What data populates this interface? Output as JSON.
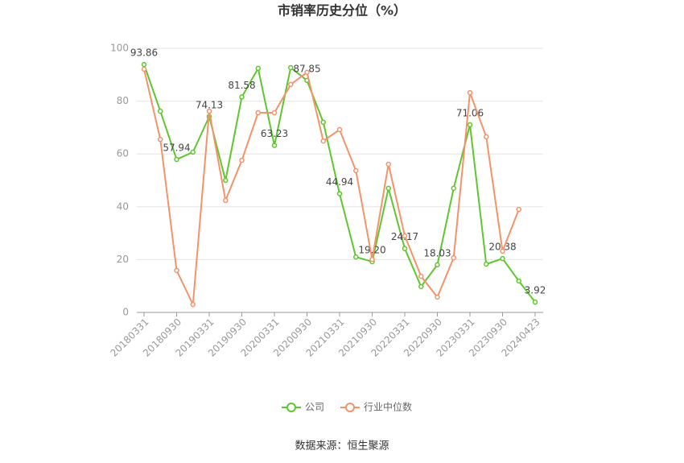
{
  "chart_data": {
    "type": "line",
    "title": "市销率历史分位（%）",
    "source": "数据来源：恒生聚源",
    "categories": [
      "20180331",
      null,
      "20180930",
      null,
      "20190331",
      null,
      "20190930",
      null,
      "20200331",
      null,
      "20200930",
      null,
      "20210331",
      null,
      "20210930",
      null,
      "20220331",
      null,
      "20220930",
      null,
      "20230331",
      null,
      "20230930",
      null,
      "20240423"
    ],
    "series": [
      {
        "name": "公司",
        "color": "#5fc62f",
        "values": [
          93.86,
          76.2,
          57.94,
          60.7,
          74.13,
          50.0,
          81.58,
          92.4,
          63.23,
          92.7,
          87.85,
          72.0,
          44.94,
          21.0,
          19.2,
          47.0,
          24.17,
          9.8,
          18.03,
          47.0,
          71.06,
          18.3,
          20.38,
          11.9,
          3.92
        ],
        "value_labels": [
          "93.86",
          null,
          "57.94",
          null,
          "74.13",
          null,
          "81.58",
          null,
          "63.23",
          null,
          "87.85",
          null,
          "44.94",
          null,
          "19.20",
          null,
          "24.17",
          null,
          "18.03",
          null,
          "71.06",
          null,
          "20.38",
          null,
          "3.92"
        ]
      },
      {
        "name": "行业中位数",
        "color": "#f4936a",
        "values": [
          92.1,
          65.5,
          15.9,
          3.0,
          76.2,
          42.4,
          57.6,
          75.6,
          75.6,
          86.3,
          90.9,
          64.9,
          69.2,
          53.7,
          20.1,
          56.1,
          29.0,
          13.7,
          5.8,
          20.7,
          83.2,
          66.5,
          23.2,
          39.0,
          null
        ]
      }
    ],
    "ylim": [
      0,
      100
    ],
    "yticks": [
      0,
      20,
      40,
      60,
      80,
      100
    ],
    "grid": true,
    "legend": "bottom"
  }
}
